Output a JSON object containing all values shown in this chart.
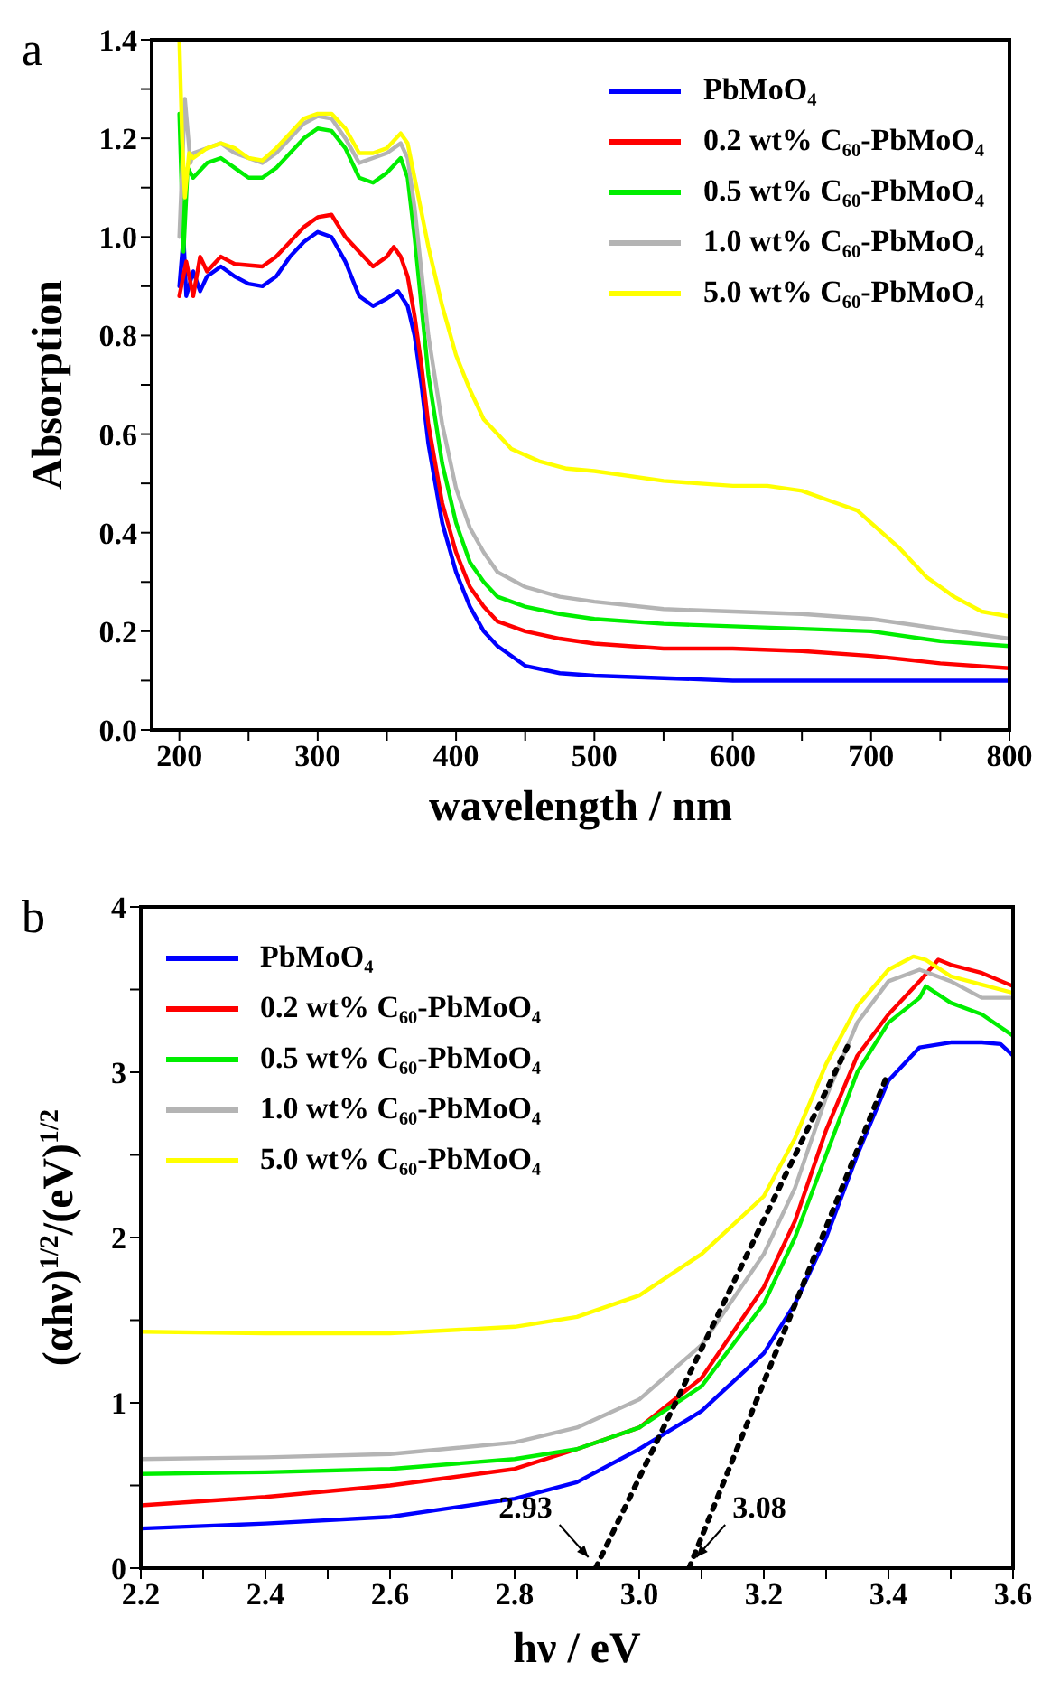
{
  "chart_data": [
    {
      "type": "line",
      "xlabel": "wavelength / nm",
      "ylabel": "Absorption",
      "legend": "top right",
      "marker": "none",
      "line_style": "solid",
      "annotations": [
        "a"
      ],
      "xlim": [
        180,
        800
      ],
      "ylim": [
        0,
        1.4
      ],
      "xticks": [
        200,
        {
          "value": 250,
          "label": null
        },
        300,
        {
          "value": 350,
          "label": null
        },
        400,
        {
          "value": 450,
          "label": null
        },
        500,
        {
          "value": 550,
          "label": null
        },
        600,
        {
          "value": 650,
          "label": null
        },
        700,
        {
          "value": 750,
          "label": null
        },
        800
      ],
      "yticks": [
        {
          "value": 0,
          "label": "0.0"
        },
        {
          "value": 0.1,
          "label": null
        },
        0.2,
        {
          "value": 0.3,
          "label": null
        },
        0.4,
        {
          "value": 0.5,
          "label": null
        },
        0.6,
        {
          "value": 0.7,
          "label": null
        },
        0.8,
        {
          "value": 0.9,
          "label": null
        },
        {
          "value": 1,
          "label": "1.0"
        },
        {
          "value": 1.1,
          "label": null
        },
        1.2,
        {
          "value": 1.3,
          "label": null
        },
        1.4
      ],
      "series": [
        {
          "name": "PbMoO₄",
          "color": "#0000ff",
          "x": [
            200,
            203,
            205,
            210,
            215,
            220,
            230,
            240,
            250,
            260,
            270,
            280,
            290,
            300,
            310,
            320,
            330,
            340,
            350,
            358,
            365,
            370,
            375,
            380,
            390,
            400,
            410,
            420,
            430,
            450,
            475,
            500,
            550,
            600,
            700,
            800
          ],
          "values": [
            0.9,
            1.0,
            0.88,
            0.93,
            0.89,
            0.92,
            0.94,
            0.92,
            0.905,
            0.9,
            0.92,
            0.96,
            0.99,
            1.01,
            1.0,
            0.95,
            0.88,
            0.86,
            0.875,
            0.89,
            0.86,
            0.8,
            0.7,
            0.58,
            0.42,
            0.32,
            0.25,
            0.2,
            0.17,
            0.13,
            0.115,
            0.11,
            0.105,
            0.1,
            0.1,
            0.1
          ]
        },
        {
          "name": "0.2 wt% C₆₀-PbMoO₄",
          "color": "#ff0000",
          "x": [
            200,
            205,
            210,
            215,
            220,
            230,
            240,
            260,
            270,
            280,
            290,
            300,
            310,
            320,
            330,
            340,
            350,
            355,
            360,
            365,
            370,
            375,
            380,
            390,
            400,
            410,
            420,
            430,
            450,
            475,
            500,
            550,
            600,
            650,
            700,
            750,
            800
          ],
          "values": [
            0.88,
            0.95,
            0.88,
            0.96,
            0.93,
            0.96,
            0.945,
            0.94,
            0.96,
            0.99,
            1.02,
            1.04,
            1.045,
            1.0,
            0.97,
            0.94,
            0.96,
            0.98,
            0.96,
            0.92,
            0.84,
            0.74,
            0.62,
            0.46,
            0.36,
            0.29,
            0.25,
            0.22,
            0.2,
            0.185,
            0.175,
            0.165,
            0.165,
            0.16,
            0.15,
            0.135,
            0.125
          ]
        },
        {
          "name": "0.5 wt% C₆₀-PbMoO₄",
          "color": "#00ee00",
          "x": [
            200,
            203,
            206,
            210,
            220,
            230,
            240,
            250,
            260,
            270,
            280,
            290,
            300,
            310,
            320,
            330,
            340,
            350,
            360,
            365,
            370,
            375,
            380,
            390,
            400,
            410,
            420,
            430,
            450,
            475,
            500,
            550,
            600,
            650,
            700,
            750,
            800
          ],
          "values": [
            1.25,
            0.97,
            1.14,
            1.12,
            1.15,
            1.16,
            1.14,
            1.12,
            1.12,
            1.14,
            1.17,
            1.2,
            1.22,
            1.215,
            1.18,
            1.12,
            1.11,
            1.13,
            1.16,
            1.12,
            1.0,
            0.86,
            0.72,
            0.54,
            0.42,
            0.34,
            0.3,
            0.27,
            0.25,
            0.235,
            0.225,
            0.215,
            0.21,
            0.205,
            0.2,
            0.18,
            0.17
          ]
        },
        {
          "name": "1.0 wt% C₆₀-PbMoO₄",
          "color": "#b4b4b4",
          "x": [
            200,
            204,
            208,
            210,
            220,
            230,
            240,
            250,
            260,
            270,
            280,
            290,
            300,
            310,
            320,
            330,
            340,
            350,
            360,
            365,
            370,
            375,
            380,
            390,
            400,
            410,
            420,
            430,
            450,
            475,
            500,
            550,
            600,
            650,
            700,
            750,
            800
          ],
          "values": [
            1.0,
            1.28,
            1.15,
            1.17,
            1.18,
            1.19,
            1.17,
            1.16,
            1.15,
            1.17,
            1.2,
            1.23,
            1.245,
            1.24,
            1.2,
            1.15,
            1.16,
            1.17,
            1.19,
            1.16,
            1.06,
            0.93,
            0.8,
            0.62,
            0.49,
            0.41,
            0.36,
            0.32,
            0.29,
            0.27,
            0.26,
            0.245,
            0.24,
            0.235,
            0.225,
            0.205,
            0.185
          ]
        },
        {
          "name": "5.0 wt% C₆₀-PbMoO₄",
          "color": "#ffff00",
          "x": [
            200,
            202,
            204,
            207,
            210,
            220,
            230,
            240,
            250,
            260,
            270,
            280,
            290,
            300,
            310,
            320,
            330,
            340,
            350,
            360,
            365,
            370,
            380,
            390,
            400,
            410,
            420,
            430,
            440,
            460,
            480,
            500,
            550,
            600,
            625,
            650,
            675,
            690,
            700,
            720,
            740,
            760,
            780,
            800
          ],
          "values": [
            1.4,
            1.2,
            1.08,
            1.17,
            1.16,
            1.18,
            1.19,
            1.18,
            1.16,
            1.155,
            1.18,
            1.21,
            1.24,
            1.25,
            1.25,
            1.22,
            1.17,
            1.17,
            1.18,
            1.21,
            1.19,
            1.12,
            0.98,
            0.86,
            0.76,
            0.69,
            0.63,
            0.6,
            0.57,
            0.545,
            0.53,
            0.525,
            0.505,
            0.495,
            0.495,
            0.485,
            0.46,
            0.445,
            0.42,
            0.37,
            0.31,
            0.27,
            0.24,
            0.23
          ]
        }
      ]
    },
    {
      "type": "line",
      "xlabel": "hν / eV",
      "ylabel": "(αhν)$^{1/2}$/(eV)$^{1/2}$",
      "legend": "top left",
      "marker": "none",
      "line_style": "solid",
      "annotations": [
        "b",
        {
          "text": "2.93",
          "x": 2.93,
          "y": 0
        },
        {
          "text": "3.08",
          "x": 3.08,
          "y": 0
        }
      ],
      "xlim": [
        2.2,
        3.6
      ],
      "ylim": [
        0,
        4
      ],
      "xticks": [
        2.2,
        {
          "value": 2.3,
          "label": null
        },
        2.4,
        {
          "value": 2.5,
          "label": null
        },
        2.6,
        {
          "value": 2.7,
          "label": null
        },
        2.8,
        {
          "value": 2.9,
          "label": null
        },
        {
          "value": 3,
          "label": "3.0"
        },
        {
          "value": 3.1,
          "label": null
        },
        3.2,
        {
          "value": 3.3,
          "label": null
        },
        3.4,
        {
          "value": 3.5,
          "label": null
        },
        3.6
      ],
      "yticks": [
        0,
        {
          "value": 0.5,
          "label": null
        },
        1,
        {
          "value": 1.5,
          "label": null
        },
        2,
        {
          "value": 2.5,
          "label": null
        },
        3,
        {
          "value": 3.5,
          "label": null
        },
        4
      ],
      "series": [
        {
          "name": "PbMoO₄",
          "color": "#0000ff",
          "x": [
            2.2,
            2.4,
            2.6,
            2.8,
            2.9,
            3.0,
            3.1,
            3.2,
            3.25,
            3.3,
            3.35,
            3.4,
            3.45,
            3.5,
            3.55,
            3.58,
            3.6
          ],
          "values": [
            0.24,
            0.27,
            0.31,
            0.42,
            0.52,
            0.72,
            0.95,
            1.3,
            1.6,
            2.0,
            2.5,
            2.95,
            3.15,
            3.18,
            3.18,
            3.17,
            3.1
          ]
        },
        {
          "name": "0.2 wt% C₆₀-PbMoO₄",
          "color": "#ff0000",
          "x": [
            2.2,
            2.4,
            2.6,
            2.8,
            2.9,
            3.0,
            3.1,
            3.2,
            3.25,
            3.3,
            3.35,
            3.4,
            3.45,
            3.48,
            3.5,
            3.55,
            3.6
          ],
          "values": [
            0.38,
            0.43,
            0.5,
            0.6,
            0.72,
            0.85,
            1.15,
            1.7,
            2.1,
            2.65,
            3.1,
            3.35,
            3.55,
            3.68,
            3.65,
            3.6,
            3.52
          ]
        },
        {
          "name": "0.5 wt% C₆₀-PbMoO₄",
          "color": "#00ee00",
          "x": [
            2.2,
            2.4,
            2.6,
            2.8,
            2.9,
            3.0,
            3.1,
            3.2,
            3.25,
            3.3,
            3.35,
            3.4,
            3.45,
            3.46,
            3.5,
            3.55,
            3.6
          ],
          "values": [
            0.57,
            0.58,
            0.6,
            0.66,
            0.72,
            0.85,
            1.1,
            1.6,
            2.0,
            2.5,
            3.0,
            3.3,
            3.45,
            3.52,
            3.42,
            3.35,
            3.22
          ]
        },
        {
          "name": "1.0 wt% C₆₀-PbMoO₄",
          "color": "#b4b4b4",
          "x": [
            2.2,
            2.4,
            2.6,
            2.8,
            2.9,
            3.0,
            3.1,
            3.2,
            3.25,
            3.3,
            3.35,
            3.4,
            3.45,
            3.5,
            3.55,
            3.6
          ],
          "values": [
            0.66,
            0.67,
            0.69,
            0.76,
            0.85,
            1.02,
            1.35,
            1.9,
            2.3,
            2.85,
            3.3,
            3.55,
            3.62,
            3.55,
            3.45,
            3.45
          ]
        },
        {
          "name": "5.0 wt% C₆₀-PbMoO₄",
          "color": "#ffff00",
          "x": [
            2.2,
            2.4,
            2.6,
            2.8,
            2.9,
            3.0,
            3.1,
            3.2,
            3.25,
            3.3,
            3.35,
            3.4,
            3.44,
            3.46,
            3.5,
            3.55,
            3.6
          ],
          "values": [
            1.43,
            1.42,
            1.42,
            1.46,
            1.52,
            1.65,
            1.9,
            2.25,
            2.6,
            3.05,
            3.4,
            3.62,
            3.7,
            3.68,
            3.58,
            3.53,
            3.48
          ]
        },
        {
          "type": "line",
          "color": "#000000",
          "line_style": "dotted",
          "x": [
            2.93,
            3.34
          ],
          "values": [
            0,
            3.2
          ]
        },
        {
          "type": "line",
          "color": "#000000",
          "line_style": "dotted",
          "x": [
            3.08,
            3.4
          ],
          "values": [
            0,
            3.0
          ]
        }
      ]
    }
  ]
}
